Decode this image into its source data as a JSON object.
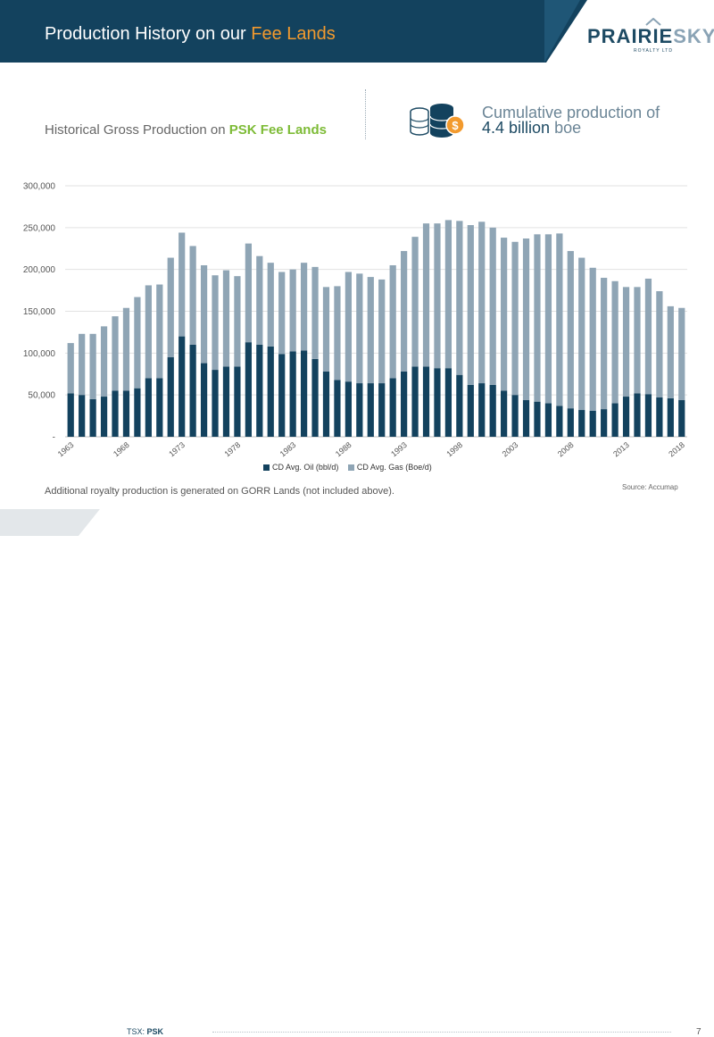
{
  "header": {
    "title_prefix": "Production History on our",
    "title_highlight": "Fee Lands",
    "logo_text_a": "PRAIRIE",
    "logo_text_b": "SKY",
    "logo_sub": "ROYALTY LTD"
  },
  "subtitle": {
    "prefix": "Historical Gross Production on",
    "highlight": "PSK Fee Lands"
  },
  "callout": {
    "line1": "Cumulative production of",
    "value": "4.4 billion",
    "unit": "boe",
    "icon": "database-dollar-icon"
  },
  "chart_data": {
    "type": "bar",
    "stacked": true,
    "x_start": 1963,
    "x_end": 2018,
    "x_tick_labels": [
      "1963",
      "1968",
      "1973",
      "1978",
      "1983",
      "1988",
      "1993",
      "1998",
      "2003",
      "2008",
      "2013",
      "2018"
    ],
    "y_tick_labels": [
      "-",
      "50,000",
      "100,000",
      "150,000",
      "200,000",
      "250,000",
      "300,000"
    ],
    "ylim": [
      0,
      300000
    ],
    "grid": true,
    "legend_position": "bottom",
    "series": [
      {
        "name": "CD Avg. Oil (bbl/d)",
        "color": "#13425e",
        "values": [
          52000,
          50000,
          45000,
          48000,
          55000,
          55000,
          58000,
          70000,
          70000,
          95000,
          120000,
          110000,
          88000,
          80000,
          84000,
          84000,
          113000,
          110000,
          108000,
          99000,
          102000,
          103000,
          93000,
          78000,
          68000,
          66000,
          64000,
          64000,
          64000,
          70000,
          78000,
          84000,
          84000,
          82000,
          82000,
          74000,
          62000,
          64000,
          62000,
          55000,
          50000,
          44000,
          42000,
          40000,
          37000,
          34000,
          32000,
          31000,
          33000,
          40000,
          48000,
          52000,
          51000,
          47000,
          46000,
          44000
        ]
      },
      {
        "name": "CD Avg. Gas (Boe/d)",
        "color": "#8fa5b5",
        "values": [
          60000,
          73000,
          78000,
          84000,
          89000,
          99000,
          109000,
          111000,
          112000,
          119000,
          124000,
          118000,
          117000,
          113000,
          115000,
          108000,
          118000,
          106000,
          100000,
          98000,
          98000,
          105000,
          110000,
          101000,
          112000,
          131000,
          131000,
          127000,
          124000,
          135000,
          144000,
          155000,
          171000,
          173000,
          177000,
          184000,
          191000,
          193000,
          188000,
          183000,
          183000,
          193000,
          200000,
          202000,
          206000,
          188000,
          182000,
          171000,
          157000,
          146000,
          131000,
          127000,
          138000,
          127000,
          110000,
          110000
        ]
      }
    ]
  },
  "note": "Additional royalty production is generated on GORR Lands (not included above).",
  "source": "Source: Accumap",
  "footer": {
    "ticker_label": "TSX:",
    "ticker_symbol": "PSK",
    "page_number": "7"
  }
}
